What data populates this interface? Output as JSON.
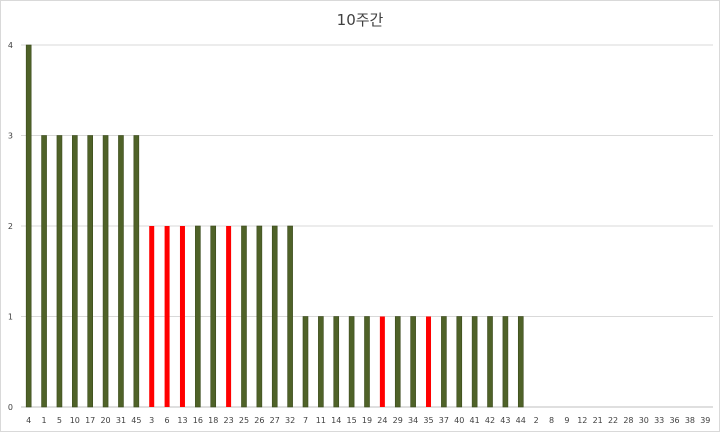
{
  "chart_data": {
    "type": "bar",
    "title": "10주간",
    "xlabel": "",
    "ylabel": "",
    "ylim": [
      0,
      4
    ],
    "yticks": [
      0,
      1,
      2,
      3,
      4
    ],
    "grid": true,
    "legend": "none",
    "categories": [
      "4",
      "1",
      "5",
      "10",
      "17",
      "20",
      "31",
      "45",
      "3",
      "6",
      "13",
      "16",
      "18",
      "23",
      "25",
      "26",
      "27",
      "32",
      "7",
      "11",
      "14",
      "15",
      "19",
      "24",
      "29",
      "34",
      "35",
      "37",
      "40",
      "41",
      "42",
      "43",
      "44",
      "2",
      "8",
      "9",
      "12",
      "21",
      "22",
      "28",
      "30",
      "33",
      "36",
      "38",
      "39"
    ],
    "values": [
      4,
      3,
      3,
      3,
      3,
      3,
      3,
      3,
      2,
      2,
      2,
      2,
      2,
      2,
      2,
      2,
      2,
      2,
      1,
      1,
      1,
      1,
      1,
      1,
      1,
      1,
      1,
      1,
      1,
      1,
      1,
      1,
      1,
      0,
      0,
      0,
      0,
      0,
      0,
      0,
      0,
      0,
      0,
      0,
      0
    ],
    "highlighted": [
      "3",
      "6",
      "13",
      "23",
      "24",
      "35"
    ],
    "colors": {
      "bar": "#4f6228",
      "bar_border": "#3a4a1c",
      "highlight": "#ff0000",
      "grid": "#d9d9d9",
      "text": "#404040"
    }
  }
}
